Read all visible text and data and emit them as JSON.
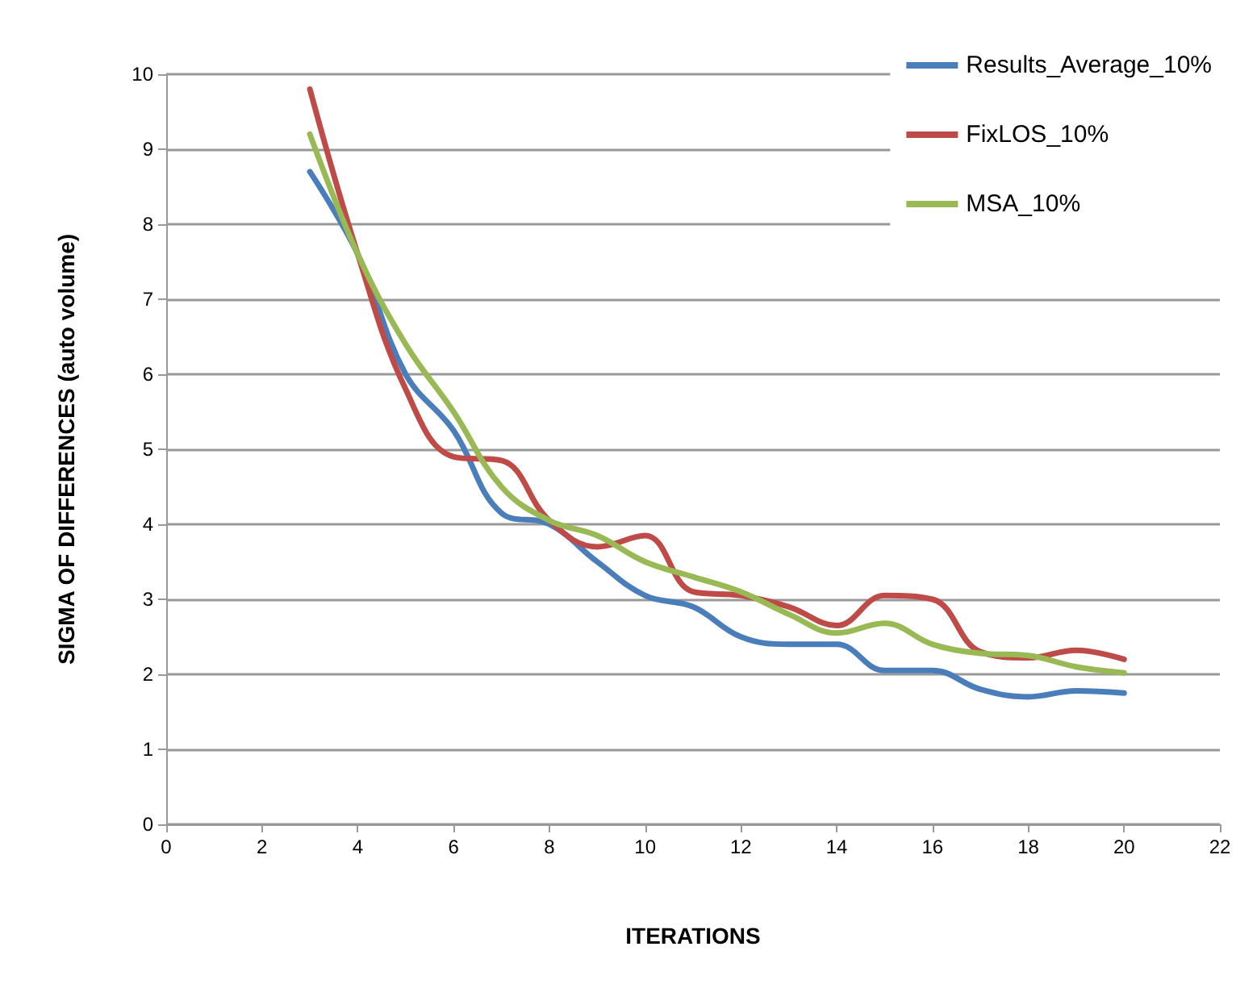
{
  "chart_data": {
    "type": "line",
    "xlabel": "ITERATIONS",
    "ylabel": "SIGMA OF DIFFERENCES (auto volume)",
    "x": [
      3,
      4,
      5,
      6,
      7,
      8,
      9,
      10,
      11,
      12,
      13,
      14,
      15,
      16,
      17,
      18,
      19,
      20
    ],
    "series": [
      {
        "name": "Results_Average_10%",
        "color": "#4a7ebb",
        "values": [
          8.7,
          7.6,
          6.0,
          5.25,
          4.15,
          4.0,
          3.5,
          3.05,
          2.9,
          2.5,
          2.4,
          2.4,
          2.05,
          2.05,
          1.8,
          1.7,
          1.78,
          1.75
        ]
      },
      {
        "name": "FixLOS_10%",
        "color": "#be4b48",
        "values": [
          9.8,
          7.6,
          5.8,
          4.9,
          4.85,
          4.05,
          3.7,
          3.85,
          3.1,
          3.05,
          2.9,
          2.65,
          3.05,
          3.0,
          2.3,
          2.22,
          2.32,
          2.2
        ]
      },
      {
        "name": "MSA_10%",
        "color": "#98b954",
        "values": [
          9.2,
          7.6,
          6.4,
          5.5,
          4.5,
          4.05,
          3.85,
          3.5,
          3.3,
          3.1,
          2.8,
          2.55,
          2.68,
          2.4,
          2.28,
          2.25,
          2.1,
          2.02
        ]
      }
    ],
    "xlim": [
      0,
      22
    ],
    "xticks": [
      0,
      2,
      4,
      6,
      8,
      10,
      12,
      14,
      16,
      18,
      20,
      22
    ],
    "ylim": [
      0,
      10
    ],
    "yticks": [
      0,
      1,
      2,
      3,
      4,
      5,
      6,
      7,
      8,
      9,
      10
    ],
    "grid": "y",
    "legend": "top right",
    "marker": "none",
    "line_style": "solid"
  }
}
